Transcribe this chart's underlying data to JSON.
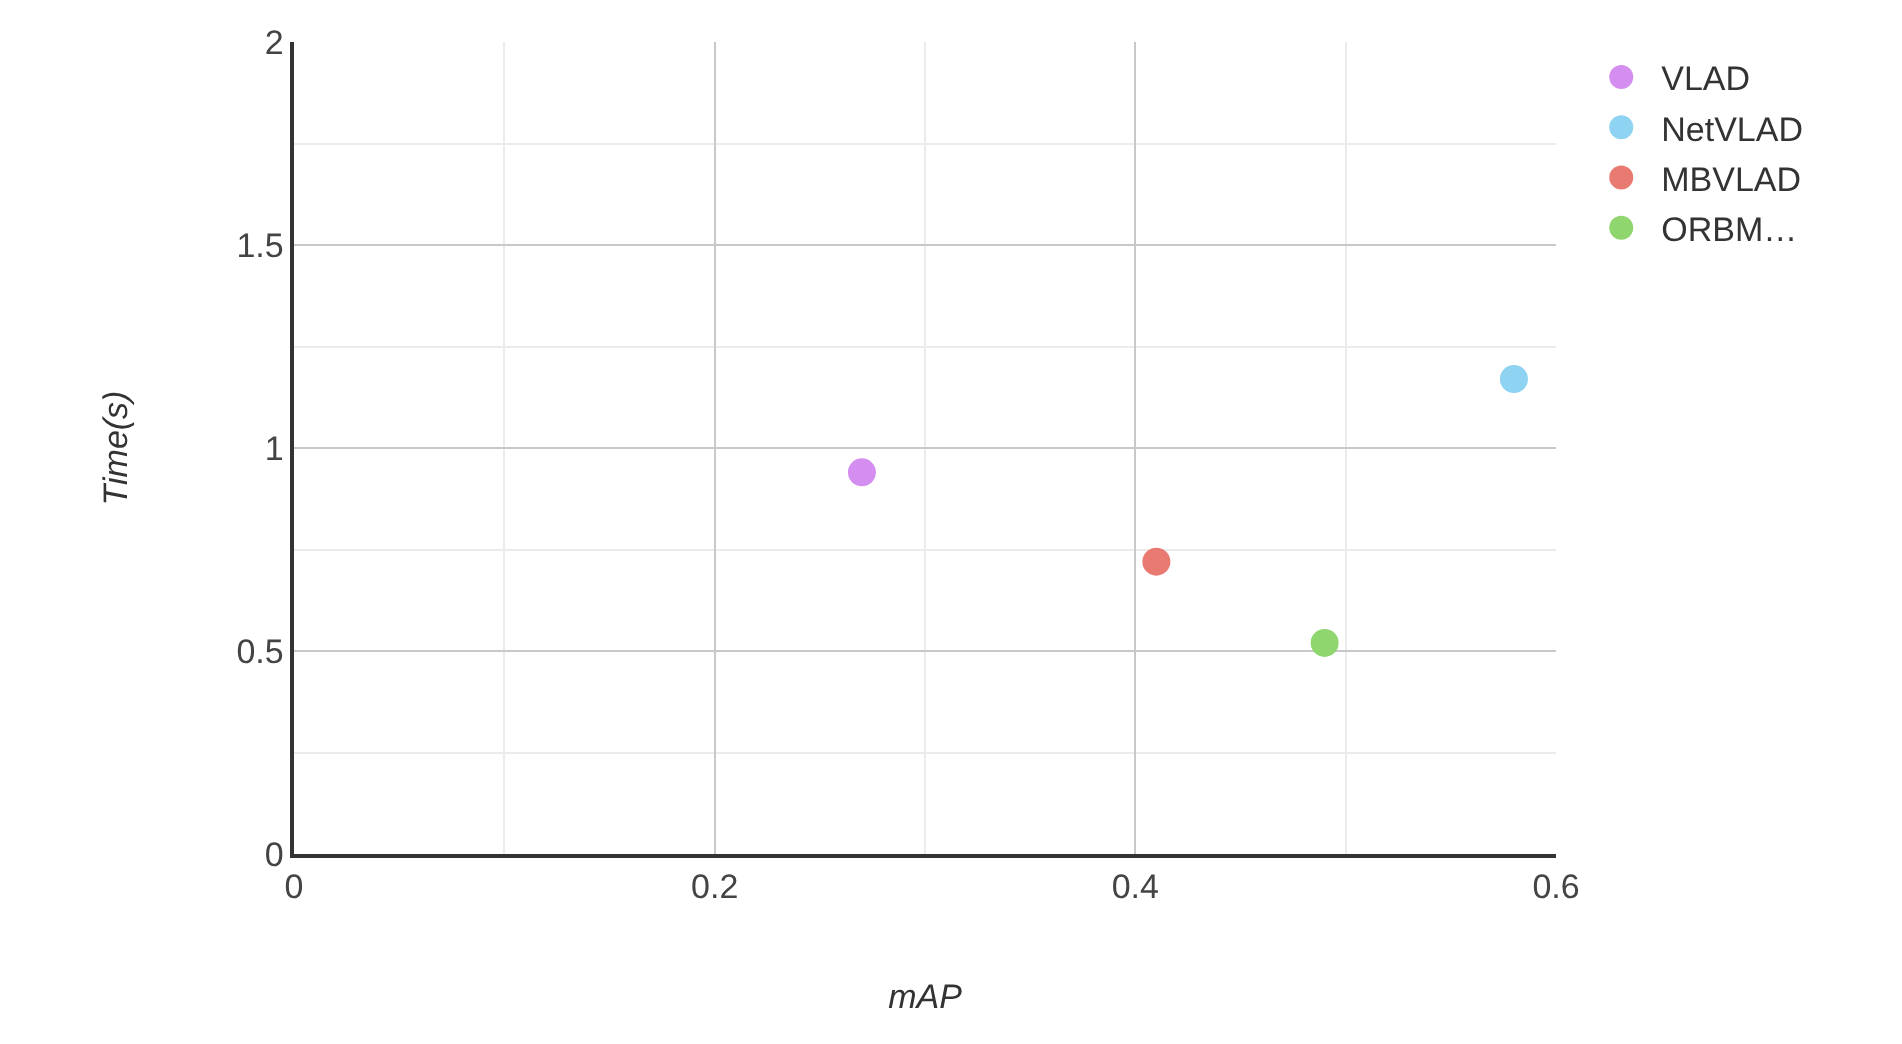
{
  "chart_data": {
    "type": "scatter",
    "xlabel": "mAP",
    "ylabel": "Time(s)",
    "xlim": [
      0,
      0.6
    ],
    "xticks": [
      0,
      0.2,
      0.4,
      0.6
    ],
    "ylim": [
      0,
      2
    ],
    "yticks": [
      0,
      0.5,
      1,
      1.5,
      2
    ],
    "grid": true,
    "legend": "top right",
    "marker": "circle",
    "series": [
      {
        "name": "VLAD",
        "color": "#d48ef0",
        "x": [
          0.27
        ],
        "values": [
          0.94
        ]
      },
      {
        "name": "NetVLAD",
        "color": "#8fd3f2",
        "x": [
          0.58
        ],
        "values": [
          1.17
        ]
      },
      {
        "name": "MBVLAD",
        "color": "#e87a72",
        "x": [
          0.41
        ],
        "values": [
          0.72
        ]
      },
      {
        "name": "ORBM…",
        "color": "#8fd66f",
        "x": [
          0.49
        ],
        "values": [
          0.52
        ]
      }
    ]
  }
}
